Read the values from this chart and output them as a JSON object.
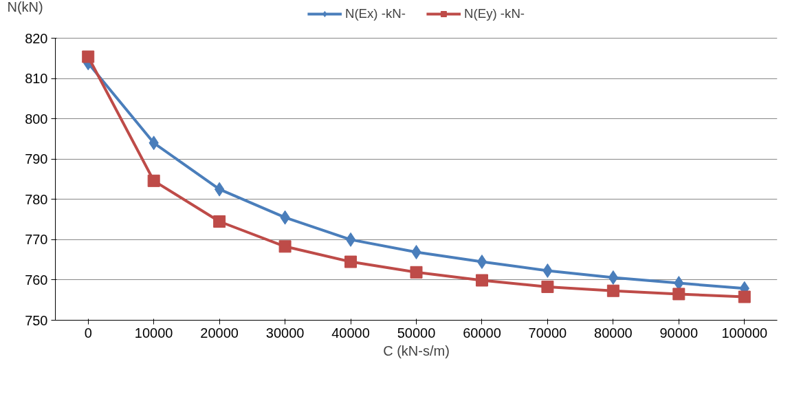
{
  "chart_data": {
    "type": "line",
    "ylabel": "N(kN)",
    "xlabel": "C (kN-s/m)",
    "categories": [
      "0",
      "10000",
      "20000",
      "30000",
      "40000",
      "50000",
      "60000",
      "70000",
      "80000",
      "90000",
      "100000"
    ],
    "series": [
      {
        "name": "N(Ex) -kN-",
        "color": "#4a7ebb",
        "marker": "diamond",
        "values": [
          813.8,
          794.0,
          782.5,
          775.5,
          770.0,
          766.9,
          764.5,
          762.3,
          760.6,
          759.2,
          757.9
        ]
      },
      {
        "name": "N(Ey) -kN-",
        "color": "#be4b48",
        "marker": "square",
        "values": [
          815.4,
          784.6,
          774.5,
          768.3,
          764.5,
          761.9,
          759.9,
          758.3,
          757.3,
          756.5,
          755.8
        ]
      }
    ],
    "ylim": [
      750,
      820
    ],
    "yticks": [
      750,
      760,
      770,
      780,
      790,
      800,
      810,
      820
    ],
    "grid": "y",
    "legend": "top"
  }
}
